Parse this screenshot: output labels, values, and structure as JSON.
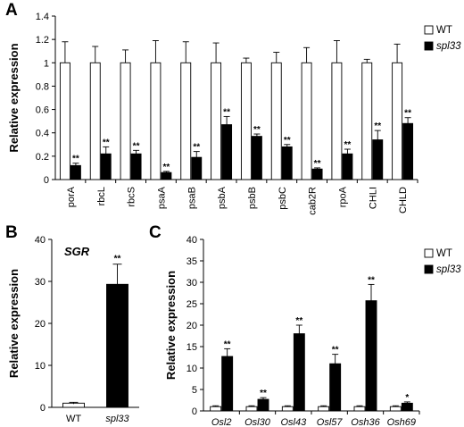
{
  "panels": [
    {
      "letter": "A"
    },
    {
      "letter": "B"
    },
    {
      "letter": "C"
    }
  ],
  "chart_data": [
    {
      "panel": "A",
      "type": "bar",
      "ylabel": "Relative expression",
      "ylim": [
        0,
        1.4
      ],
      "yticks": [
        0,
        0.2,
        0.4,
        0.6,
        0.8,
        1,
        1.2,
        1.4
      ],
      "ytick_labels": [
        "0",
        "0.2",
        "0.4",
        "0.6",
        "0.8",
        "1",
        "1.2",
        "1.4"
      ],
      "categories": [
        "porA",
        "rbcL",
        "rbcS",
        "psaA",
        "psaB",
        "psbA",
        "psbB",
        "psbC",
        "cab2R",
        "rpoA",
        "CHLI",
        "CHLD"
      ],
      "category_style": "rotated",
      "legend": {
        "position": "top-right"
      },
      "series": [
        {
          "name": "WT",
          "color": "#ffffff",
          "values": [
            1,
            1,
            1,
            1,
            1,
            1,
            1,
            1,
            1,
            1,
            1,
            1
          ],
          "errors": [
            0.18,
            0.14,
            0.11,
            0.19,
            0.18,
            0.17,
            0.04,
            0.09,
            0.13,
            0.19,
            0.03,
            0.16
          ]
        },
        {
          "name": "spl33",
          "italic": true,
          "color": "#000000",
          "values": [
            0.12,
            0.22,
            0.22,
            0.06,
            0.19,
            0.47,
            0.37,
            0.28,
            0.09,
            0.22,
            0.34,
            0.48
          ],
          "errors": [
            0.02,
            0.06,
            0.03,
            0.01,
            0.05,
            0.07,
            0.02,
            0.02,
            0.01,
            0.04,
            0.08,
            0.05
          ],
          "significance": [
            "**",
            "**",
            "**",
            "**",
            "**",
            "**",
            "**",
            "**",
            "**",
            "**",
            "**",
            "**"
          ]
        }
      ]
    },
    {
      "panel": "B",
      "type": "bar",
      "title": "SGR",
      "ylabel": "Relative expression",
      "ylim": [
        0,
        40
      ],
      "yticks": [
        0,
        10,
        20,
        30,
        40
      ],
      "ytick_labels": [
        "0",
        "10",
        "20",
        "30",
        "40"
      ],
      "categories": [
        "WT",
        "spl33"
      ],
      "values": [
        1,
        29.3
      ],
      "errors": [
        0.2,
        4.8
      ],
      "colors": [
        "#ffffff",
        "#000000"
      ],
      "significance": [
        "",
        "**"
      ]
    },
    {
      "panel": "C",
      "type": "bar",
      "ylabel": "Relative expression",
      "ylim": [
        0,
        40
      ],
      "yticks": [
        0,
        5,
        10,
        15,
        20,
        25,
        30,
        35,
        40
      ],
      "ytick_labels": [
        "0",
        "5",
        "10",
        "15",
        "20",
        "25",
        "30",
        "35",
        "40"
      ],
      "categories": [
        "Osl2",
        "Osl30",
        "Osl43",
        "Osl57",
        "Osh36",
        "Osh69"
      ],
      "legend": {
        "position": "top-right"
      },
      "series": [
        {
          "name": "WT",
          "color": "#ffffff",
          "values": [
            1,
            1,
            1,
            1,
            1,
            1
          ],
          "errors": [
            0.2,
            0.2,
            0.2,
            0.2,
            0.2,
            0.2
          ]
        },
        {
          "name": "spl33",
          "italic": true,
          "color": "#000000",
          "values": [
            12.7,
            2.7,
            18,
            11,
            25.7,
            1.8
          ],
          "errors": [
            1.8,
            0.4,
            2,
            2.2,
            3.8,
            0.3
          ],
          "significance": [
            "**",
            "**",
            "**",
            "**",
            "**",
            "*"
          ]
        }
      ]
    }
  ]
}
